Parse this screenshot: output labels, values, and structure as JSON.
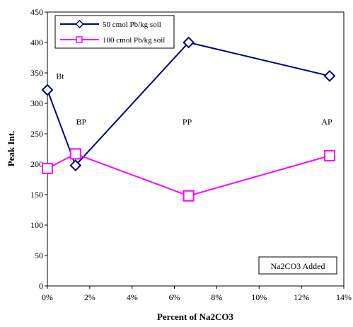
{
  "chart_data": {
    "type": "line",
    "title": "",
    "xlabel": "Percent of Na2CO3",
    "ylabel": "Peak Int.",
    "xlim": [
      0,
      14
    ],
    "ylim": [
      0,
      450
    ],
    "x_ticks": [
      0,
      2,
      4,
      6,
      8,
      10,
      12,
      14
    ],
    "x_tick_labels": [
      "0%",
      "2%",
      "4%",
      "6%",
      "8%",
      "10%",
      "12%",
      "14%"
    ],
    "y_ticks": [
      0,
      50,
      100,
      150,
      200,
      250,
      300,
      350,
      400,
      450
    ],
    "y_tick_labels": [
      "0",
      "50",
      "100",
      "150",
      "200",
      "250",
      "300",
      "350",
      "400",
      "450"
    ],
    "grid": false,
    "legend_position": "top-left",
    "series": [
      {
        "name": "50 cmol Pb/kg soil",
        "color": "#000080",
        "marker": "diamond",
        "x": [
          0,
          1.33,
          6.67,
          13.33
        ],
        "y": [
          322,
          198,
          400,
          345
        ]
      },
      {
        "name": "100 cmol Pb/kg soil",
        "color": "#ff00ff",
        "marker": "square",
        "x": [
          0,
          1.33,
          6.67,
          13.33
        ],
        "y": [
          193,
          217,
          148,
          214
        ]
      }
    ],
    "annotations": [
      {
        "text": "Bt",
        "x": 0.6,
        "y": 340
      },
      {
        "text": "BP",
        "x": 1.6,
        "y": 265
      },
      {
        "text": "PP",
        "x": 6.6,
        "y": 265
      },
      {
        "text": "AP",
        "x": 13.2,
        "y": 265
      }
    ],
    "boxed_note": "Na2CO3 Added"
  }
}
